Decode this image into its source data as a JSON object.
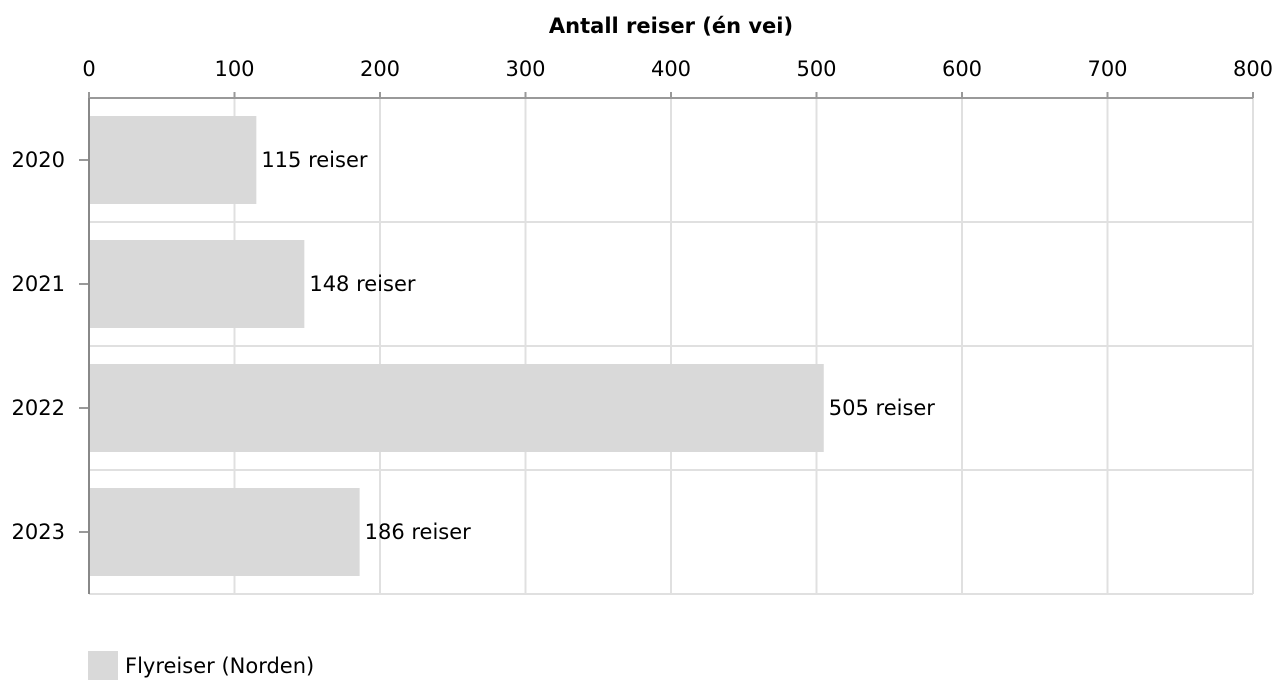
{
  "chart_data": {
    "type": "bar",
    "orientation": "horizontal",
    "x_label": "Antall reiser (én vei)",
    "categories": [
      "2020",
      "2021",
      "2022",
      "2023"
    ],
    "series": [
      {
        "name": "Flyreiser (Norden)",
        "color": "#d9d9d9",
        "values": [
          115,
          148,
          505,
          186
        ],
        "value_labels": [
          "115 reiser",
          "148 reiser",
          "505 reiser",
          "186 reiser"
        ]
      }
    ],
    "xlim": [
      0,
      800
    ],
    "xticks": [
      0,
      100,
      200,
      300,
      400,
      500,
      600,
      700,
      800
    ],
    "grid": true,
    "legend": "bottom-left"
  }
}
